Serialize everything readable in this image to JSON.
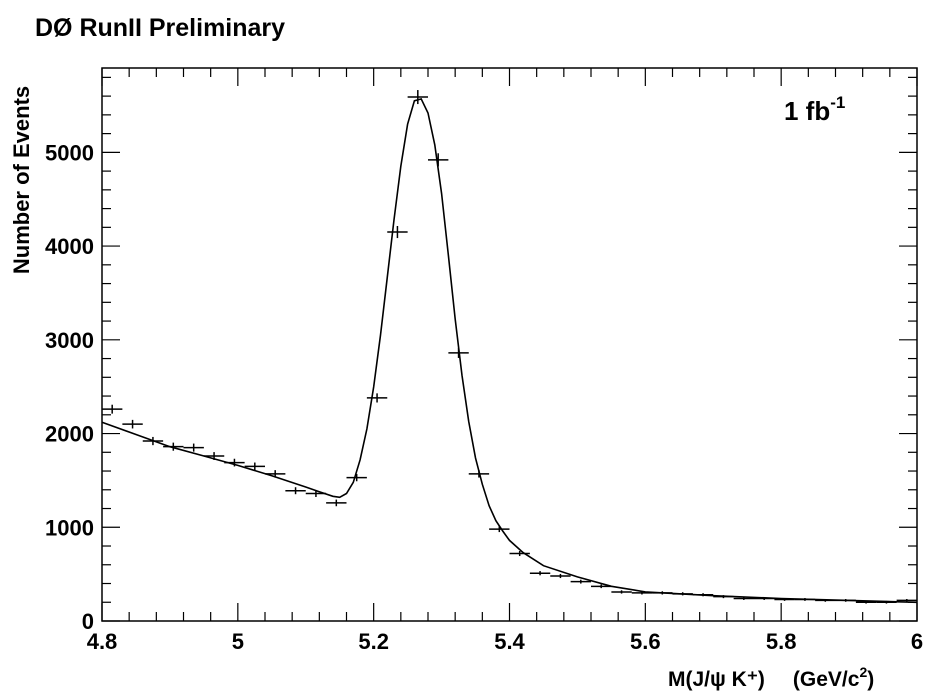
{
  "header": {
    "experiment_label": "DØ RunII Preliminary"
  },
  "annotation": {
    "lumi_value": "1 fb",
    "lumi_exponent": "-1"
  },
  "axes": {
    "ylabel": "Number of Events",
    "xlabel_main": "M(J/ψ K⁺)",
    "xlabel_unit_open": "(GeV/c",
    "xlabel_unit_sup": "2",
    "xlabel_unit_close": ")"
  },
  "chart_data": {
    "type": "scatter",
    "title": "DØ RunII Preliminary",
    "xlabel": "M(J/ψ K⁺) (GeV/c²)",
    "ylabel": "Number of Events",
    "xlim": [
      4.8,
      6.0
    ],
    "ylim": [
      0,
      5900
    ],
    "bin_width": 0.03,
    "x_ticks": [
      4.8,
      5.0,
      5.2,
      5.4,
      5.6,
      5.8,
      6.0
    ],
    "x_tick_labels": [
      "4.8",
      "5",
      "5.2",
      "5.4",
      "5.6",
      "5.8",
      "6"
    ],
    "y_ticks": [
      0,
      1000,
      2000,
      3000,
      4000,
      5000
    ],
    "y_tick_labels": [
      "0",
      "1000",
      "2000",
      "3000",
      "4000",
      "5000"
    ],
    "series": [
      {
        "kind": "data-points",
        "x": [
          4.815,
          4.845,
          4.875,
          4.905,
          4.935,
          4.965,
          4.995,
          5.025,
          5.055,
          5.085,
          5.115,
          5.145,
          5.175,
          5.205,
          5.235,
          5.265,
          5.295,
          5.325,
          5.355,
          5.385,
          5.415,
          5.445,
          5.475,
          5.505,
          5.535,
          5.565,
          5.595,
          5.625,
          5.655,
          5.685,
          5.715,
          5.745,
          5.775,
          5.805,
          5.835,
          5.865,
          5.895,
          5.925,
          5.955,
          5.985
        ],
        "y": [
          2260,
          2100,
          1920,
          1860,
          1850,
          1760,
          1690,
          1650,
          1570,
          1390,
          1360,
          1260,
          1530,
          2380,
          4150,
          5590,
          4920,
          2860,
          1570,
          980,
          720,
          510,
          480,
          420,
          370,
          310,
          300,
          300,
          290,
          280,
          260,
          240,
          240,
          230,
          230,
          220,
          220,
          200,
          200,
          220
        ]
      },
      {
        "kind": "fit-curve",
        "x": [
          4.8,
          4.85,
          4.9,
          4.95,
          5.0,
          5.05,
          5.1,
          5.12,
          5.14,
          5.15,
          5.16,
          5.17,
          5.18,
          5.19,
          5.2,
          5.21,
          5.22,
          5.23,
          5.24,
          5.25,
          5.26,
          5.27,
          5.28,
          5.29,
          5.3,
          5.31,
          5.32,
          5.33,
          5.34,
          5.35,
          5.36,
          5.37,
          5.38,
          5.39,
          5.4,
          5.42,
          5.45,
          5.5,
          5.55,
          5.6,
          5.7,
          5.8,
          5.9,
          6.0
        ],
        "y": [
          2120,
          1990,
          1860,
          1760,
          1660,
          1550,
          1430,
          1380,
          1330,
          1320,
          1360,
          1480,
          1720,
          2050,
          2500,
          3050,
          3660,
          4280,
          4850,
          5300,
          5550,
          5570,
          5420,
          5080,
          4560,
          3900,
          3220,
          2620,
          2130,
          1740,
          1460,
          1230,
          1070,
          960,
          860,
          730,
          590,
          470,
          370,
          310,
          270,
          240,
          220,
          200
        ]
      }
    ]
  }
}
